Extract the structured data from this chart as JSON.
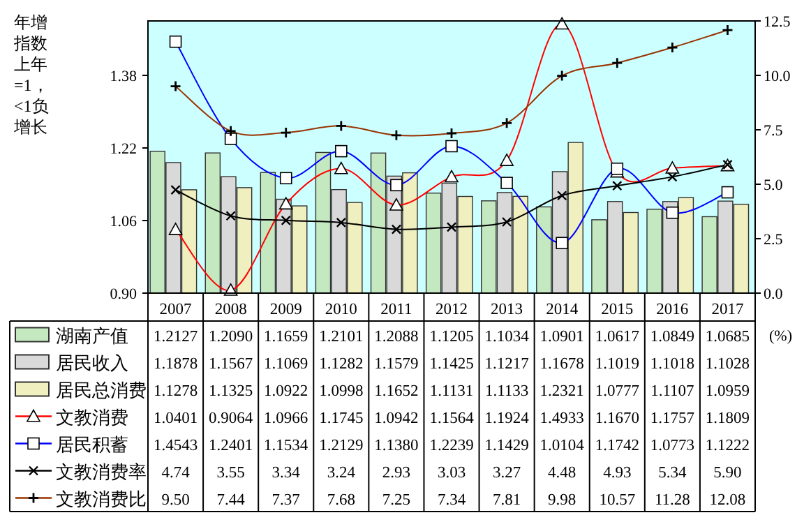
{
  "chart_data": {
    "type": "bar",
    "ylabel": "年增指数上年=1，<1负增长",
    "y2label": "(%)",
    "categories": [
      "2007",
      "2008",
      "2009",
      "2010",
      "2011",
      "2012",
      "2013",
      "2014",
      "2015",
      "2016",
      "2017"
    ],
    "ylim": [
      0.9,
      1.5
    ],
    "yticks": [
      {
        "value": 0.9,
        "label": "0.90"
      },
      1.06,
      1.22,
      1.38
    ],
    "y2lim": [
      0,
      12.5
    ],
    "y2ticks": [
      {
        "value": 0,
        "label": "0.0"
      },
      2.5,
      {
        "value": 5,
        "label": "5.0"
      },
      7.5,
      {
        "value": 10,
        "label": "10.0"
      },
      12.5
    ],
    "grid": false,
    "legend": "bottom left",
    "series": [
      {
        "name": "湖南产值",
        "color": "#c4e8c0",
        "values": [
          1.2127,
          1.209,
          1.1659,
          1.2101,
          1.2088,
          1.1205,
          1.1034,
          1.0901,
          1.0617,
          1.0849,
          1.0685
        ],
        "value_labels": [
          "1.2127",
          "1.2090",
          "1.1659",
          "1.2101",
          "1.2088",
          "1.1205",
          "1.1034",
          "1.0901",
          "1.0617",
          "1.0849",
          "1.0685"
        ]
      },
      {
        "name": "居民收入",
        "color": "#d9d9d9",
        "values": [
          1.1878,
          1.1567,
          1.1069,
          1.1282,
          1.1579,
          1.1425,
          1.1217,
          1.1678,
          1.1019,
          1.1018,
          1.1028
        ],
        "value_labels": [
          "1.1878",
          "1.1567",
          "1.1069",
          "1.1282",
          "1.1579",
          "1.1425",
          "1.1217",
          "1.1678",
          "1.1019",
          "1.1018",
          "1.1028"
        ]
      },
      {
        "name": "居民总消费",
        "color": "#efefbf",
        "values": [
          1.1278,
          1.1325,
          1.0922,
          1.0998,
          1.1652,
          1.1131,
          1.1133,
          1.2321,
          1.0777,
          1.1107,
          1.0959
        ],
        "value_labels": [
          "1.1278",
          "1.1325",
          "1.0922",
          "1.0998",
          "1.1652",
          "1.1131",
          "1.1133",
          "1.2321",
          "1.0777",
          "1.1107",
          "1.0959"
        ]
      },
      {
        "name": "文教消费",
        "type": "line",
        "color": "#ff0000",
        "marker": "triangle",
        "values": [
          1.0401,
          0.9064,
          1.0966,
          1.1745,
          1.0942,
          1.1564,
          1.1924,
          1.4933,
          1.167,
          1.1757,
          1.1809
        ],
        "value_labels": [
          "1.0401",
          "0.9064",
          "1.0966",
          "1.1745",
          "1.0942",
          "1.1564",
          "1.1924",
          "1.4933",
          "1.1670",
          "1.1757",
          "1.1809"
        ]
      },
      {
        "name": "居民积蓄",
        "type": "line",
        "color": "#0000ff",
        "marker": "square",
        "values": [
          1.4543,
          1.2401,
          1.1534,
          1.2129,
          1.138,
          1.2239,
          1.1429,
          1.0104,
          1.1742,
          1.0773,
          1.1222
        ],
        "value_labels": [
          "1.4543",
          "1.2401",
          "1.1534",
          "1.2129",
          "1.1380",
          "1.2239",
          "1.1429",
          "1.0104",
          "1.1742",
          "1.0773",
          "1.1222"
        ]
      },
      {
        "name": "文教消费率",
        "type": "line",
        "axis": "y2",
        "color": "#000000",
        "marker": "cross",
        "values": [
          4.74,
          3.55,
          3.34,
          3.24,
          2.93,
          3.03,
          3.27,
          4.48,
          4.93,
          5.34,
          5.9
        ],
        "value_labels": [
          "4.74",
          "3.55",
          "3.34",
          "3.24",
          "2.93",
          "3.03",
          "3.27",
          "4.48",
          "4.93",
          "5.34",
          "5.90"
        ]
      },
      {
        "name": "文教消费比",
        "type": "line",
        "axis": "y2",
        "color": "#993300",
        "marker": "plus",
        "values": [
          9.5,
          7.44,
          7.37,
          7.68,
          7.25,
          7.34,
          7.81,
          9.98,
          10.57,
          11.28,
          12.08
        ],
        "value_labels": [
          "9.50",
          "7.44",
          "7.37",
          "7.68",
          "7.25",
          "7.34",
          "7.81",
          "9.98",
          "10.57",
          "11.28",
          "12.08"
        ]
      }
    ]
  }
}
